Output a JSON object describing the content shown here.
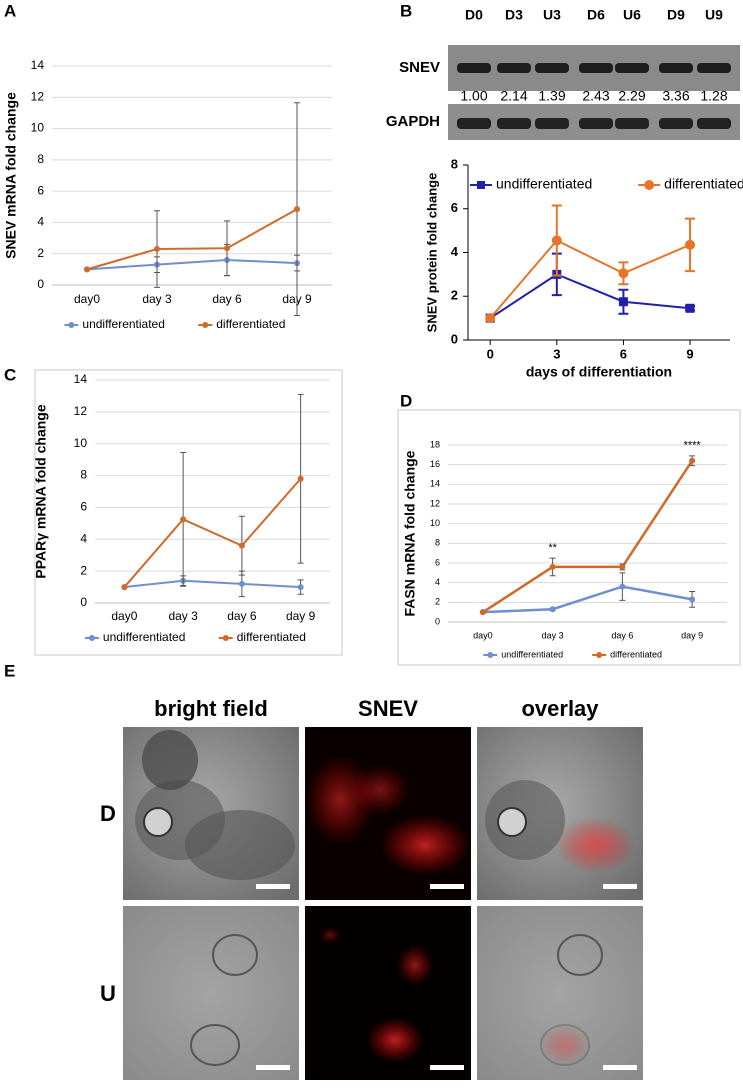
{
  "panels": [
    "A",
    "B",
    "C",
    "D",
    "E"
  ],
  "blot": {
    "lanes": [
      "D0",
      "D3",
      "U3",
      "D6",
      "U6",
      "D9",
      "U9"
    ],
    "rows": [
      "SNEV",
      "GAPDH"
    ],
    "ratios": [
      "1.00",
      "2.14",
      "1.39",
      "2.43",
      "2.29",
      "3.36",
      "1.28"
    ]
  },
  "chart_data": [
    {
      "type": "line",
      "ylabel": "SNEV mRNA fold change",
      "categories": [
        "day0",
        "day 3",
        "day 6",
        "day 9"
      ],
      "ylim": [
        0,
        14
      ],
      "yticks": [
        0,
        2,
        4,
        6,
        8,
        10,
        12,
        14
      ],
      "grid": true,
      "legend": "bottom",
      "series": [
        {
          "name": "undifferentiated",
          "color": "#6f8fd0",
          "marker": "circle",
          "values": [
            1,
            1.3,
            1.6,
            1.4
          ],
          "errors": [
            0,
            0.5,
            1.0,
            0.5
          ]
        },
        {
          "name": "differentiated",
          "color": "#d0692c",
          "marker": "circle",
          "values": [
            1,
            2.3,
            2.35,
            4.85
          ],
          "errors": [
            0,
            2.45,
            1.75,
            6.8
          ]
        }
      ]
    },
    {
      "type": "line",
      "ylabel": "SNEV protein fold change",
      "xlabel": "days of differentiation",
      "x": [
        0,
        3,
        6,
        9
      ],
      "xlim": [
        -1,
        10.8
      ],
      "xticks": [
        0,
        3,
        6,
        9
      ],
      "ylim": [
        0,
        8
      ],
      "yticks": [
        0,
        2,
        4,
        6,
        8
      ],
      "grid": false,
      "legend": "top",
      "series": [
        {
          "name": "undifferentiated",
          "color": "#2020a8",
          "marker": "square",
          "values": [
            1,
            3,
            1.75,
            1.45
          ],
          "errors": [
            0,
            0.95,
            0.55,
            0.1
          ]
        },
        {
          "name": "differentiated",
          "color": "#e8742a",
          "marker": "circle",
          "values": [
            1,
            4.55,
            3.05,
            4.35
          ],
          "errors": [
            0,
            1.6,
            0.5,
            1.2
          ]
        }
      ]
    },
    {
      "type": "line",
      "ylabel": "PPARγ  mRNA fold change",
      "categories": [
        "day0",
        "day 3",
        "day 6",
        "day 9"
      ],
      "ylim": [
        0,
        14
      ],
      "yticks": [
        0,
        2,
        4,
        6,
        8,
        10,
        12,
        14
      ],
      "grid": true,
      "legend": "bottom",
      "series": [
        {
          "name": "undifferentiated",
          "color": "#6f8fd0",
          "marker": "circle",
          "values": [
            1,
            1.4,
            1.2,
            1.0
          ],
          "errors": [
            0,
            0.3,
            0.8,
            0.45
          ]
        },
        {
          "name": "differentiated",
          "color": "#d0692c",
          "marker": "circle",
          "values": [
            1,
            5.25,
            3.6,
            7.8
          ],
          "errors": [
            0,
            4.2,
            1.85,
            5.3
          ]
        }
      ]
    },
    {
      "type": "line",
      "ylabel": "FASN mRNA fold change",
      "categories": [
        "day0",
        "day 3",
        "day 6",
        "day 9"
      ],
      "ylim": [
        0,
        18
      ],
      "yticks": [
        0,
        2,
        4,
        6,
        8,
        10,
        12,
        14,
        16,
        18
      ],
      "grid": true,
      "legend": "bottom",
      "annotations": [
        "**",
        "****"
      ],
      "series": [
        {
          "name": "undifferentiated",
          "color": "#6f8fd0",
          "marker": "circle",
          "values": [
            1,
            1.3,
            3.6,
            2.3
          ],
          "errors": [
            0,
            0.1,
            1.4,
            0.8
          ]
        },
        {
          "name": "differentiated",
          "color": "#d0692c",
          "marker": "circle",
          "values": [
            1,
            5.6,
            5.6,
            16.4
          ],
          "errors": [
            0,
            0.9,
            0.3,
            0.5
          ]
        }
      ]
    }
  ],
  "imaging": {
    "columns": [
      "bright field",
      "SNEV",
      "overlay"
    ],
    "rows": [
      "D",
      "U"
    ]
  }
}
